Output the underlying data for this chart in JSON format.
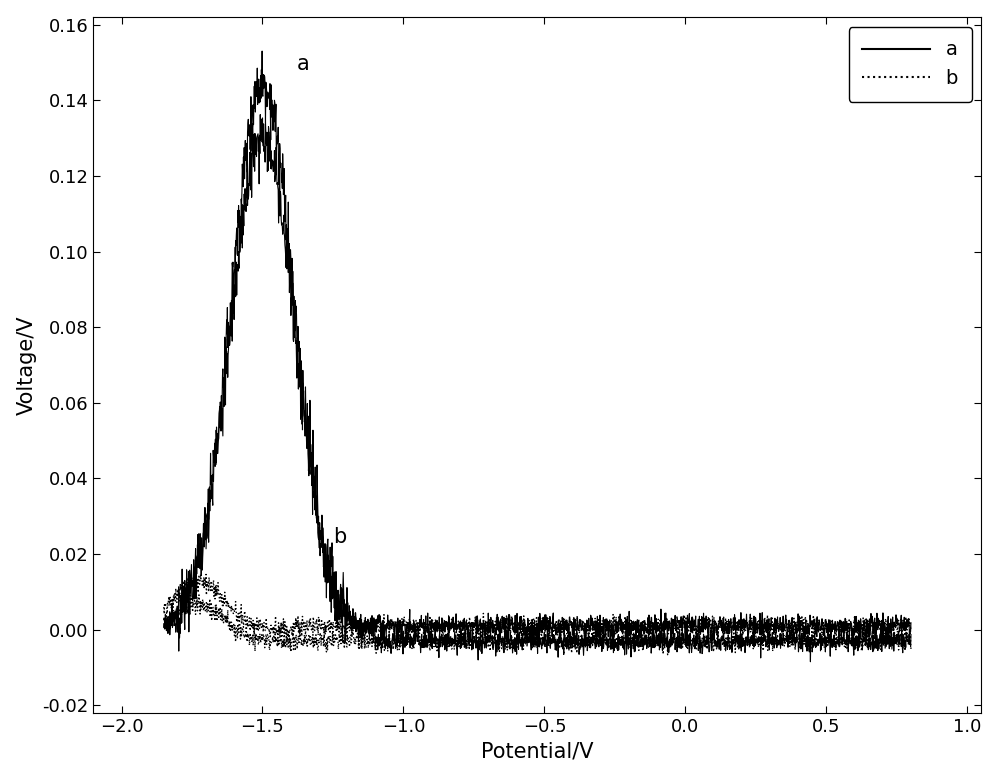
{
  "xlabel": "Potential/V",
  "ylabel": "Voltage/V",
  "xlim": [
    -2.1,
    1.05
  ],
  "ylim": [
    -0.022,
    0.162
  ],
  "xticks": [
    -2.0,
    -1.5,
    -1.0,
    -0.5,
    0.0,
    0.5,
    1.0
  ],
  "yticks": [
    -0.02,
    0.0,
    0.02,
    0.04,
    0.06,
    0.08,
    0.1,
    0.12,
    0.14,
    0.16
  ],
  "label_a": "a",
  "label_b": "b",
  "annotation_a": "a",
  "annotation_b": "b",
  "line_color": "#000000",
  "background_color": "#ffffff",
  "peak_potential": -1.5,
  "peak_voltage_a": 0.145,
  "noise_amplitude_peak": 0.004,
  "noise_amplitude_flat_a": 0.0015,
  "noise_amplitude_flat_b": 0.0012,
  "xlabel_fontsize": 15,
  "ylabel_fontsize": 15,
  "tick_fontsize": 13,
  "annotation_fontsize": 15,
  "legend_fontsize": 14,
  "figsize": [
    10.0,
    7.78
  ],
  "dpi": 100
}
